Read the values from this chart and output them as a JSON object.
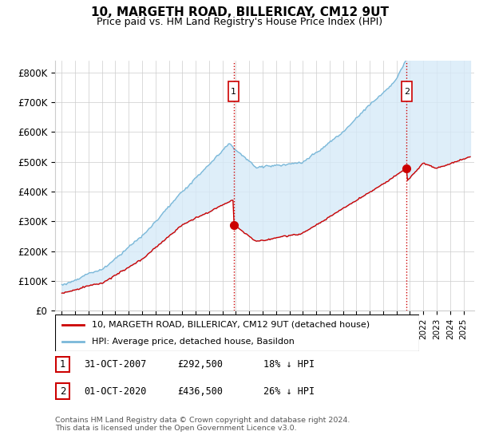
{
  "title": "10, MARGETH ROAD, BILLERICAY, CM12 9UT",
  "subtitle": "Price paid vs. HM Land Registry's House Price Index (HPI)",
  "ylim": [
    0,
    840000
  ],
  "yticks": [
    0,
    100000,
    200000,
    300000,
    400000,
    500000,
    600000,
    700000,
    800000
  ],
  "ytick_labels": [
    "£0",
    "£100K",
    "£200K",
    "£300K",
    "£400K",
    "£500K",
    "£600K",
    "£700K",
    "£800K"
  ],
  "hpi_color": "#7ab8d9",
  "hpi_fill_color": "#d6eaf8",
  "price_color": "#cc0000",
  "vline_color": "#cc0000",
  "marker1_date": 2007.83,
  "marker1_price": 292500,
  "marker2_date": 2020.75,
  "marker2_price": 436500,
  "legend_price_label": "10, MARGETH ROAD, BILLERICAY, CM12 9UT (detached house)",
  "legend_hpi_label": "HPI: Average price, detached house, Basildon",
  "note1_label": "1",
  "note1_date": "31-OCT-2007",
  "note1_price": "£292,500",
  "note1_pct": "18% ↓ HPI",
  "note2_label": "2",
  "note2_date": "01-OCT-2020",
  "note2_price": "£436,500",
  "note2_pct": "26% ↓ HPI",
  "footer": "Contains HM Land Registry data © Crown copyright and database right 2024.\nThis data is licensed under the Open Government Licence v3.0.",
  "background_color": "#ffffff",
  "grid_color": "#cccccc"
}
